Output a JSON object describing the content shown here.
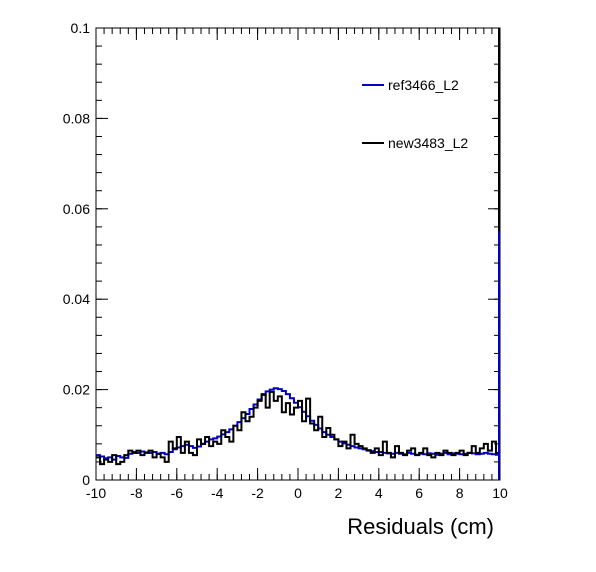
{
  "chart_data": {
    "type": "line",
    "title": "",
    "xlabel": "Residuals (cm)",
    "ylabel": "",
    "xlim": [
      -10,
      10
    ],
    "ylim": [
      0,
      0.1
    ],
    "xticks": [
      "-10",
      "-8",
      "-6",
      "-4",
      "-2",
      "0",
      "2",
      "4",
      "6",
      "8",
      "10"
    ],
    "yticks": [
      "0",
      "0.02",
      "0.04",
      "0.06",
      "0.08",
      "0.1"
    ],
    "grid": false,
    "legend_position": "top-right",
    "bin_edges_start": -10,
    "bin_width": 0.2,
    "series": [
      {
        "name": "ref3466_L2",
        "color": "#0000cc",
        "values": [
          0.0055,
          0.0052,
          0.0048,
          0.005,
          0.0045,
          0.0053,
          0.005,
          0.0049,
          0.0058,
          0.0062,
          0.006,
          0.0063,
          0.0061,
          0.006,
          0.0062,
          0.0058,
          0.006,
          0.0057,
          0.0062,
          0.0068,
          0.0072,
          0.0075,
          0.0078,
          0.0075,
          0.0071,
          0.0074,
          0.008,
          0.0085,
          0.009,
          0.0092,
          0.0096,
          0.0101,
          0.0106,
          0.0112,
          0.012,
          0.0128,
          0.0137,
          0.0146,
          0.0157,
          0.0167,
          0.0178,
          0.0188,
          0.0196,
          0.02,
          0.0203,
          0.0201,
          0.0197,
          0.019,
          0.0181,
          0.0171,
          0.0161,
          0.0151,
          0.0141,
          0.0131,
          0.0122,
          0.0114,
          0.0106,
          0.01,
          0.0095,
          0.009,
          0.0085,
          0.0081,
          0.0078,
          0.0075,
          0.0072,
          0.007,
          0.0068,
          0.0066,
          0.0064,
          0.0062,
          0.0062,
          0.006,
          0.0059,
          0.0058,
          0.006,
          0.0058,
          0.0057,
          0.006,
          0.0058,
          0.0056,
          0.0058,
          0.0057,
          0.0059,
          0.0058,
          0.0056,
          0.0058,
          0.006,
          0.0057,
          0.0059,
          0.0058,
          0.0057,
          0.0058,
          0.006,
          0.0059,
          0.0057,
          0.0058,
          0.006,
          0.0058,
          0.0057,
          0.0056
        ]
      },
      {
        "name": "new3483_L2",
        "color": "#000000",
        "values": [
          0.005,
          0.0035,
          0.0045,
          0.004,
          0.0055,
          0.0035,
          0.004,
          0.0055,
          0.0065,
          0.006,
          0.0065,
          0.0055,
          0.006,
          0.0065,
          0.005,
          0.0058,
          0.005,
          0.004,
          0.0085,
          0.007,
          0.0095,
          0.006,
          0.0085,
          0.006,
          0.0055,
          0.009,
          0.008,
          0.0095,
          0.0075,
          0.0085,
          0.008,
          0.011,
          0.0095,
          0.0085,
          0.012,
          0.011,
          0.015,
          0.013,
          0.014,
          0.016,
          0.0175,
          0.019,
          0.016,
          0.0195,
          0.0175,
          0.0185,
          0.015,
          0.017,
          0.0145,
          0.016,
          0.0175,
          0.013,
          0.018,
          0.0125,
          0.011,
          0.014,
          0.0095,
          0.0115,
          0.01,
          0.009,
          0.0075,
          0.0085,
          0.007,
          0.01,
          0.008,
          0.0075,
          0.007,
          0.0065,
          0.006,
          0.007,
          0.0055,
          0.0085,
          0.006,
          0.005,
          0.0075,
          0.006,
          0.0055,
          0.0065,
          0.007,
          0.0055,
          0.006,
          0.007,
          0.0055,
          0.005,
          0.006,
          0.0055,
          0.0065,
          0.006,
          0.0055,
          0.006,
          0.0065,
          0.0055,
          0.006,
          0.0075,
          0.006,
          0.007,
          0.008,
          0.0065,
          0.0085,
          0.006
        ]
      }
    ]
  }
}
